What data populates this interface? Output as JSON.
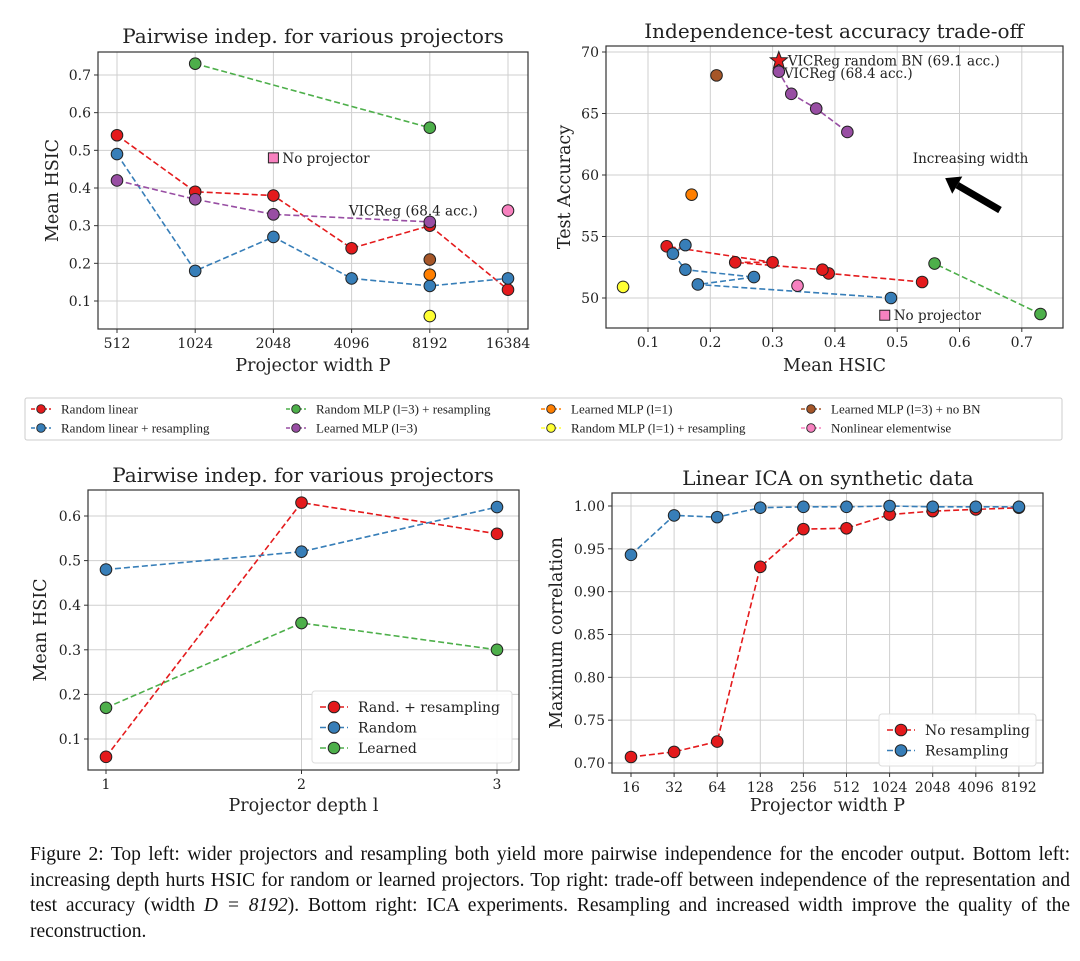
{
  "legend": [
    {
      "label": "Random linear",
      "color": "#e41a1c"
    },
    {
      "label": "Random linear + resampling",
      "color": "#377eb8"
    },
    {
      "label": "Random MLP (l=3) + resampling",
      "color": "#4daf4a"
    },
    {
      "label": "Learned MLP (l=3)",
      "color": "#984ea3"
    },
    {
      "label": "Learned MLP (l=1)",
      "color": "#ff7f00"
    },
    {
      "label": "Random MLP (l=1) + resampling",
      "color": "#ffff33"
    },
    {
      "label": "Learned MLP (l=3) + no BN",
      "color": "#a65628"
    },
    {
      "label": "Nonlinear elementwise",
      "color": "#f781bf"
    }
  ],
  "chart_data": [
    {
      "type": "line",
      "title": "Pairwise indep. for various projectors",
      "xlabel": "Projector width P",
      "ylabel": "Mean HSIC",
      "xscale": "log2",
      "xticks": [
        512,
        1024,
        2048,
        4096,
        8192,
        16384
      ],
      "xtick_labels": [
        "512",
        "1024",
        "2048",
        "4096",
        "8192",
        "16384"
      ],
      "yticks": [
        0.1,
        0.2,
        0.3,
        0.4,
        0.5,
        0.6,
        0.7
      ],
      "ytick_labels": [
        "0.1",
        "0.2",
        "0.3",
        "0.4",
        "0.5",
        "0.6",
        "0.7"
      ],
      "grid": true,
      "series": [
        {
          "name": "Random linear",
          "color": "#e41a1c",
          "x": [
            512,
            1024,
            2048,
            4096,
            8192,
            16384
          ],
          "y": [
            0.54,
            0.39,
            0.38,
            0.24,
            0.3,
            0.13
          ]
        },
        {
          "name": "Random linear + resampling",
          "color": "#377eb8",
          "x": [
            512,
            1024,
            2048,
            4096,
            8192,
            16384
          ],
          "y": [
            0.49,
            0.18,
            0.27,
            0.16,
            0.14,
            0.16
          ]
        },
        {
          "name": "Random MLP (l=3) + resampling",
          "color": "#4daf4a",
          "x": [
            1024,
            8192
          ],
          "y": [
            0.73,
            0.56
          ]
        },
        {
          "name": "Learned MLP (l=3)",
          "color": "#984ea3",
          "x": [
            512,
            1024,
            2048,
            8192
          ],
          "y": [
            0.42,
            0.37,
            0.33,
            0.31
          ]
        },
        {
          "name": "Learned MLP (l=3) + no BN",
          "color": "#a65628",
          "x": [
            8192
          ],
          "y": [
            0.21
          ]
        },
        {
          "name": "Learned MLP (l=1)",
          "color": "#ff7f00",
          "x": [
            8192
          ],
          "y": [
            0.17
          ]
        },
        {
          "name": "Random MLP (l=1) + resampling",
          "color": "#ffff33",
          "x": [
            8192
          ],
          "y": [
            0.06
          ]
        },
        {
          "name": "Nonlinear elementwise",
          "color": "#f781bf",
          "x": [
            16384
          ],
          "y": [
            0.34
          ]
        }
      ],
      "markers": [
        {
          "label": "No projector",
          "shape": "square",
          "color": "#f781bf",
          "x": 2048,
          "y": 0.48
        }
      ],
      "annotations": [
        {
          "text": "VICReg (68.4 acc.)",
          "x": 4000,
          "y": 0.34
        }
      ]
    },
    {
      "type": "scatter",
      "title": "Independence-test accuracy trade-off",
      "xlabel": "Mean HSIC",
      "ylabel": "Test Accuracy",
      "xscale": "linear",
      "xticks": [
        0.1,
        0.2,
        0.3,
        0.4,
        0.5,
        0.6,
        0.7
      ],
      "xtick_labels": [
        "0.1",
        "0.2",
        "0.3",
        "0.4",
        "0.5",
        "0.6",
        "0.7"
      ],
      "yticks": [
        50,
        55,
        60,
        65,
        70
      ],
      "ytick_labels": [
        "50",
        "55",
        "60",
        "65",
        "70"
      ],
      "grid": true,
      "series": [
        {
          "name": "Random linear",
          "color": "#e41a1c",
          "x": [
            0.54,
            0.39,
            0.38,
            0.24,
            0.3,
            0.13
          ],
          "y": [
            51.3,
            52.0,
            52.3,
            52.9,
            52.9,
            54.2
          ]
        },
        {
          "name": "Random linear + resampling",
          "color": "#377eb8",
          "x": [
            0.49,
            0.18,
            0.27,
            0.16,
            0.14,
            0.16
          ],
          "y": [
            50.0,
            51.1,
            51.7,
            52.3,
            53.6,
            54.3
          ]
        },
        {
          "name": "Random MLP (l=3) + resampling",
          "color": "#4daf4a",
          "x": [
            0.73,
            0.56
          ],
          "y": [
            48.7,
            52.8
          ]
        },
        {
          "name": "Learned MLP (l=3)",
          "color": "#984ea3",
          "x": [
            0.42,
            0.37,
            0.33,
            0.31
          ],
          "y": [
            63.5,
            65.4,
            66.6,
            68.4
          ]
        },
        {
          "name": "Learned MLP (l=3) + no BN",
          "color": "#a65628",
          "x": [
            0.21
          ],
          "y": [
            68.1
          ]
        },
        {
          "name": "Learned MLP (l=1)",
          "color": "#ff7f00",
          "x": [
            0.17
          ],
          "y": [
            58.4
          ]
        },
        {
          "name": "Random MLP (l=1) + resampling",
          "color": "#ffff33",
          "x": [
            0.06
          ],
          "y": [
            50.9
          ]
        },
        {
          "name": "Nonlinear elementwise",
          "color": "#f781bf",
          "x": [
            0.34
          ],
          "y": [
            51.0
          ]
        }
      ],
      "markers": [
        {
          "label": "VICReg random BN (69.1 acc.)",
          "shape": "star",
          "color": "#e41a1c",
          "x": 0.31,
          "y": 69.3
        },
        {
          "label": "No projector",
          "shape": "square",
          "color": "#f781bf",
          "x": 0.48,
          "y": 48.6
        }
      ],
      "annotations": [
        {
          "text": "VICReg (68.4 acc.)",
          "x": 0.318,
          "y": 68.3
        },
        {
          "text": "Increasing width",
          "x": 0.525,
          "y": 61.4
        }
      ],
      "arrow": {
        "from": [
          0.665,
          57.15
        ],
        "to": [
          0.577,
          59.75
        ]
      }
    },
    {
      "type": "line",
      "title": "Pairwise indep. for various projectors",
      "xlabel": "Projector depth l",
      "ylabel": "Mean HSIC",
      "xscale": "linear",
      "xticks": [
        1,
        2,
        3
      ],
      "xtick_labels": [
        "1",
        "2",
        "3"
      ],
      "yticks": [
        0.1,
        0.2,
        0.3,
        0.4,
        0.5,
        0.6
      ],
      "ytick_labels": [
        "0.1",
        "0.2",
        "0.3",
        "0.4",
        "0.5",
        "0.6"
      ],
      "grid": true,
      "legend_position": "lower-right",
      "series": [
        {
          "name": "Rand. + resampling",
          "color": "#e41a1c",
          "x": [
            1,
            2,
            3
          ],
          "y": [
            0.06,
            0.63,
            0.56
          ]
        },
        {
          "name": "Random",
          "color": "#377eb8",
          "x": [
            1,
            2,
            3
          ],
          "y": [
            0.48,
            0.52,
            0.62
          ]
        },
        {
          "name": "Learned",
          "color": "#4daf4a",
          "x": [
            1,
            2,
            3
          ],
          "y": [
            0.17,
            0.36,
            0.3
          ]
        }
      ]
    },
    {
      "type": "line",
      "title": "Linear ICA on synthetic data",
      "xlabel": "Projector width P",
      "ylabel": "Maximum correlation",
      "xscale": "log2",
      "xticks": [
        16,
        32,
        64,
        128,
        256,
        512,
        1024,
        2048,
        4096,
        8192
      ],
      "xtick_labels": [
        "16",
        "32",
        "64",
        "128",
        "256",
        "512",
        "1024",
        "2048",
        "4096",
        "8192"
      ],
      "yticks": [
        0.7,
        0.75,
        0.8,
        0.85,
        0.9,
        0.95,
        1.0
      ],
      "ytick_labels": [
        "0.70",
        "0.75",
        "0.80",
        "0.85",
        "0.90",
        "0.95",
        "1.00"
      ],
      "grid": true,
      "legend_position": "lower-right",
      "series": [
        {
          "name": "No resampling",
          "color": "#e41a1c",
          "x": [
            16,
            32,
            64,
            128,
            256,
            512,
            1024,
            2048,
            4096,
            8192
          ],
          "y": [
            0.707,
            0.713,
            0.725,
            0.929,
            0.973,
            0.974,
            0.99,
            0.994,
            0.996,
            0.998
          ]
        },
        {
          "name": "Resampling",
          "color": "#377eb8",
          "x": [
            16,
            32,
            64,
            128,
            256,
            512,
            1024,
            2048,
            4096,
            8192
          ],
          "y": [
            0.943,
            0.989,
            0.987,
            0.998,
            0.999,
            0.999,
            1.0,
            0.999,
            0.999,
            0.999
          ]
        }
      ]
    }
  ],
  "caption": {
    "label": "Figure 2:",
    "text1": " Top left: wider projectors and resampling both yield more pairwise independence for the encoder output. Bottom left: increasing depth hurts HSIC for random or learned projectors. Top right: trade-off between independence of the representation and test accuracy (width ",
    "math": "D = 8192",
    "text2": "). Bottom right: ICA experiments. Resampling and increased width improve the quality of the reconstruction."
  }
}
